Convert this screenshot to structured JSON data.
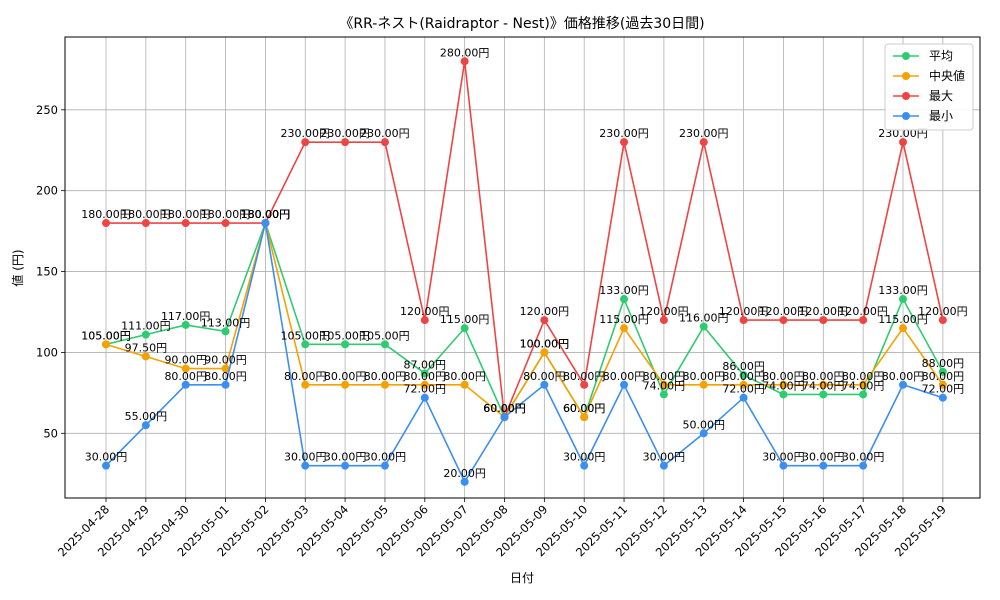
{
  "chart_data": {
    "type": "line",
    "title": "《RR-ネスト(Raidraptor - Nest)》価格推移(過去30日間)",
    "xlabel": "日付",
    "ylabel": "値 (円)",
    "ylim": [
      10,
      295
    ],
    "yticks": [
      50,
      100,
      150,
      200,
      250
    ],
    "grid": true,
    "legend_position": "top-right",
    "value_suffix": "円",
    "categories": [
      "2025-04-28",
      "2025-04-29",
      "2025-04-30",
      "2025-05-01",
      "2025-05-02",
      "2025-05-03",
      "2025-05-04",
      "2025-05-05",
      "2025-05-06",
      "2025-05-07",
      "2025-05-08",
      "2025-05-09",
      "2025-05-10",
      "2025-05-11",
      "2025-05-12",
      "2025-05-13",
      "2025-05-14",
      "2025-05-15",
      "2025-05-16",
      "2025-05-17",
      "2025-05-18",
      "2025-05-19"
    ],
    "series": [
      {
        "name": "平均",
        "color": "#2ecc71",
        "values": [
          105,
          111,
          117,
          113,
          180,
          105,
          105,
          105,
          87,
          115,
          60,
          100,
          60,
          133,
          74,
          116,
          86,
          74,
          74,
          74,
          133,
          88
        ]
      },
      {
        "name": "中央値",
        "color": "#f5a200",
        "values": [
          105,
          97.5,
          90,
          90,
          180,
          80,
          80,
          80,
          80,
          80,
          60,
          100,
          60,
          115,
          80,
          80,
          80,
          80,
          80,
          80,
          115,
          80
        ]
      },
      {
        "name": "最大",
        "color": "#ef4444",
        "values": [
          180,
          180,
          180,
          180,
          180,
          230,
          230,
          230,
          120,
          280,
          60,
          120,
          80,
          230,
          120,
          230,
          120,
          120,
          120,
          120,
          230,
          120
        ]
      },
      {
        "name": "最小",
        "color": "#3b8ff0",
        "values": [
          30,
          55,
          80,
          80,
          180,
          30,
          30,
          30,
          72,
          20,
          60,
          80,
          30,
          80,
          30,
          50,
          72,
          30,
          30,
          30,
          80,
          72
        ]
      }
    ]
  }
}
